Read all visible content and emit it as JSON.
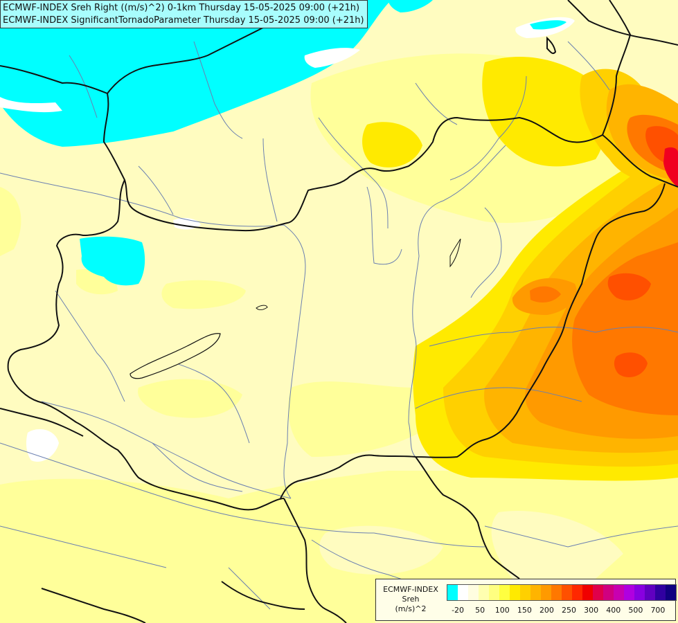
{
  "title": {
    "line1": "ECMWF-INDEX Sreh Right ((m/s)^2) 0-1km Thursday 15-05-2025 09:00 (+21h)",
    "line2": "ECMWF-INDEX SignificantTornadoParameter Thursday 15-05-2025 09:00 (+21h)"
  },
  "legend": {
    "model": "ECMWF-INDEX",
    "param": "Sreh",
    "unit": "(m/s)^2",
    "colors": [
      "#00ffff",
      "#ffffff",
      "#fffde0",
      "#ffffb0",
      "#ffff80",
      "#ffff40",
      "#ffea00",
      "#ffd000",
      "#ffb400",
      "#ff9a00",
      "#ff7800",
      "#ff5000",
      "#ff2800",
      "#f00000",
      "#e0004a",
      "#d00080",
      "#c800b0",
      "#b000e0",
      "#8800e0",
      "#6000c0",
      "#3000a0",
      "#100080"
    ],
    "ticks": [
      {
        "label": "-20",
        "index": 1
      },
      {
        "label": "50",
        "index": 3
      },
      {
        "label": "100",
        "index": 5
      },
      {
        "label": "150",
        "index": 7
      },
      {
        "label": "200",
        "index": 9
      },
      {
        "label": "250",
        "index": 11
      },
      {
        "label": "300",
        "index": 13
      },
      {
        "label": "400",
        "index": 15
      },
      {
        "label": "500",
        "index": 17
      },
      {
        "label": "700",
        "index": 19
      }
    ]
  }
}
